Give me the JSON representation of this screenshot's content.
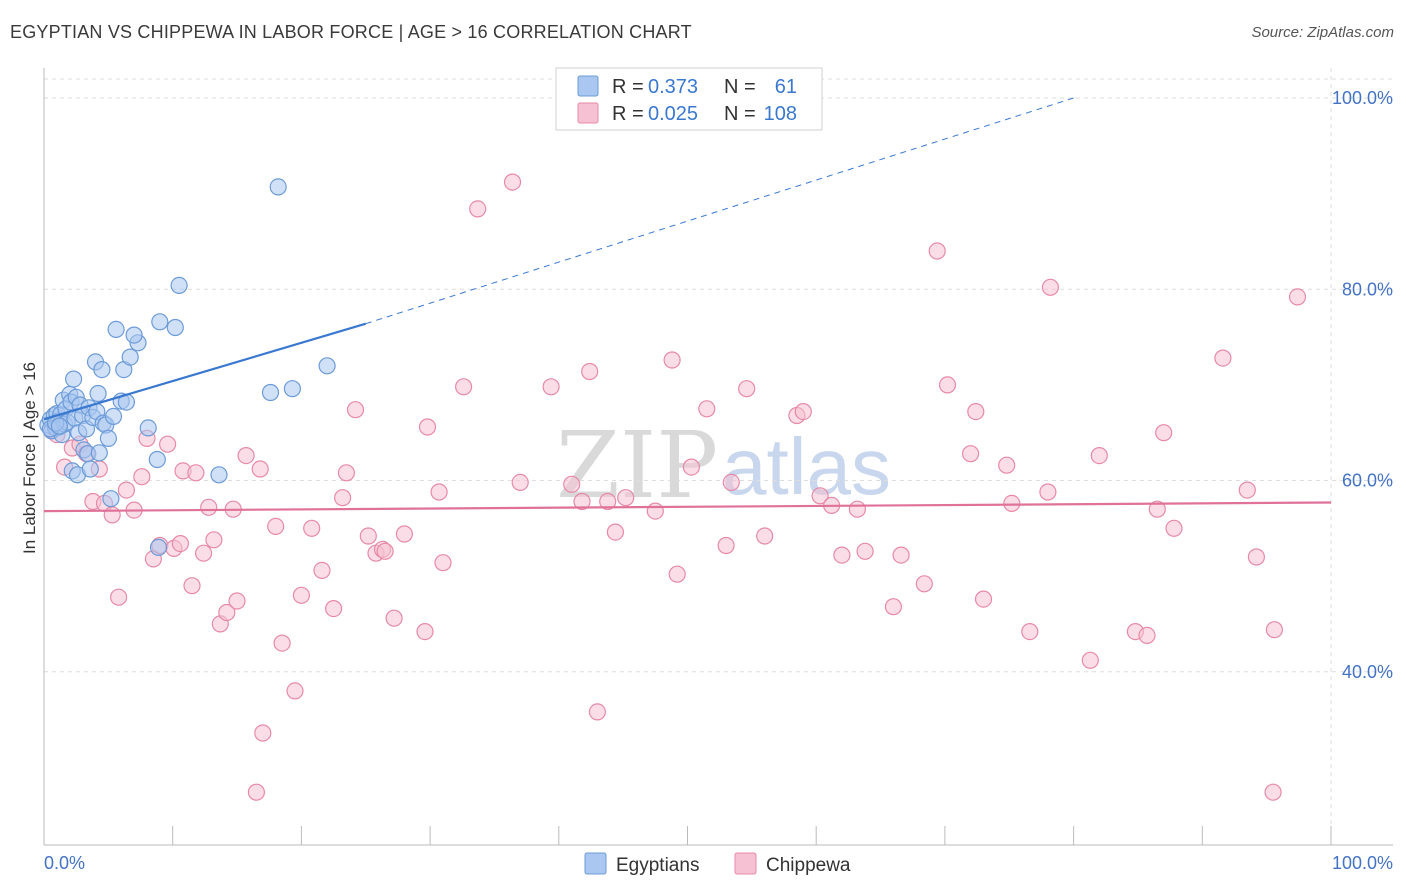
{
  "chart_data": {
    "type": "scatter",
    "title": "EGYPTIAN VS CHIPPEWA IN LABOR FORCE | AGE > 16 CORRELATION CHART",
    "source": "Source: ZipAtlas.com",
    "xlabel": "",
    "ylabel": "In Labor Force | Age > 16",
    "xlim": [
      0,
      100
    ],
    "ylim": [
      20,
      100
    ],
    "x_tick_labels": {
      "min": "0.0%",
      "max": "100.0%"
    },
    "y_ticks": [
      {
        "value": 100,
        "label": "100.0%"
      },
      {
        "value": 80,
        "label": "80.0%"
      },
      {
        "value": 60,
        "label": "60.0%"
      },
      {
        "value": 40,
        "label": "40.0%"
      }
    ],
    "grid": true,
    "watermark": {
      "zip": "ZIP",
      "atlas": "atlas"
    },
    "legend_position": "top-center",
    "colors": {
      "egyptians_fill": "#a9c7f0",
      "egyptians_stroke": "#6c9bd8",
      "egyptians_line": "#3a78d0",
      "chippewa_fill": "#f6c1d2",
      "chippewa_stroke": "#e78aa8",
      "chippewa_line": "#e0729a",
      "grid": "#dddddd",
      "axis_text": "#4472c4"
    },
    "series": [
      {
        "name": "Egyptians",
        "legend_label": "Egyptians",
        "r_label": "R =",
        "r_value": "0.373",
        "n_label": "N =",
        "n_value": "61",
        "trend": {
          "x0": 0,
          "y0": 66.4,
          "x1": 25,
          "y1": 76.4,
          "dash_x1": 80,
          "dash_y1": 100
        },
        "points": [
          [
            0.3,
            65.8
          ],
          [
            0.5,
            66.4
          ],
          [
            0.6,
            65.2
          ],
          [
            0.8,
            66.8
          ],
          [
            0.9,
            65.5
          ],
          [
            1.0,
            67.0
          ],
          [
            1.1,
            66.2
          ],
          [
            1.2,
            65.6
          ],
          [
            1.3,
            66.9
          ],
          [
            1.4,
            64.8
          ],
          [
            1.5,
            68.4
          ],
          [
            1.6,
            65.9
          ],
          [
            1.7,
            67.5
          ],
          [
            1.8,
            66.1
          ],
          [
            2.0,
            69.0
          ],
          [
            2.1,
            68.2
          ],
          [
            2.2,
            61.0
          ],
          [
            2.3,
            70.6
          ],
          [
            2.4,
            66.5
          ],
          [
            2.5,
            68.7
          ],
          [
            2.6,
            60.6
          ],
          [
            2.7,
            65.0
          ],
          [
            2.8,
            67.9
          ],
          [
            3.0,
            66.8
          ],
          [
            3.1,
            63.2
          ],
          [
            3.3,
            65.4
          ],
          [
            3.4,
            62.8
          ],
          [
            3.5,
            67.6
          ],
          [
            3.6,
            61.2
          ],
          [
            3.8,
            66.6
          ],
          [
            4.0,
            72.4
          ],
          [
            4.1,
            67.2
          ],
          [
            4.2,
            69.1
          ],
          [
            4.3,
            62.9
          ],
          [
            4.5,
            71.6
          ],
          [
            4.6,
            66.0
          ],
          [
            4.8,
            65.8
          ],
          [
            5.0,
            64.4
          ],
          [
            5.2,
            58.1
          ],
          [
            5.4,
            66.7
          ],
          [
            5.6,
            75.8
          ],
          [
            6.0,
            68.3
          ],
          [
            6.2,
            71.6
          ],
          [
            6.4,
            68.2
          ],
          [
            6.7,
            72.9
          ],
          [
            7.3,
            74.4
          ],
          [
            7.0,
            75.2
          ],
          [
            8.1,
            65.5
          ],
          [
            8.8,
            62.2
          ],
          [
            8.9,
            53.0
          ],
          [
            9.0,
            76.6
          ],
          [
            10.2,
            76.0
          ],
          [
            10.5,
            80.4
          ],
          [
            13.6,
            60.6
          ],
          [
            17.6,
            69.2
          ],
          [
            18.2,
            90.7
          ],
          [
            19.3,
            69.6
          ],
          [
            22.0,
            72.0
          ],
          [
            0.5,
            65.4
          ],
          [
            0.9,
            66.0
          ],
          [
            1.2,
            65.7
          ]
        ]
      },
      {
        "name": "Chippewa",
        "legend_label": "Chippewa",
        "r_label": "R =",
        "r_value": "0.025",
        "n_label": "N =",
        "n_value": "108",
        "trend": {
          "x0": 0,
          "y0": 56.8,
          "x1": 100,
          "y1": 57.7
        },
        "points": [
          [
            0.6,
            65.2
          ],
          [
            1.0,
            64.8
          ],
          [
            1.6,
            61.4
          ],
          [
            2.2,
            63.4
          ],
          [
            2.8,
            63.8
          ],
          [
            3.3,
            62.8
          ],
          [
            3.8,
            57.8
          ],
          [
            4.3,
            61.2
          ],
          [
            4.7,
            57.6
          ],
          [
            5.3,
            56.4
          ],
          [
            5.8,
            47.8
          ],
          [
            6.4,
            59.0
          ],
          [
            7.0,
            56.9
          ],
          [
            7.6,
            60.4
          ],
          [
            8.0,
            64.4
          ],
          [
            8.5,
            51.8
          ],
          [
            9.0,
            53.2
          ],
          [
            9.6,
            63.8
          ],
          [
            10.1,
            52.9
          ],
          [
            10.6,
            53.4
          ],
          [
            10.8,
            61.0
          ],
          [
            11.5,
            49.0
          ],
          [
            11.8,
            60.8
          ],
          [
            12.4,
            52.4
          ],
          [
            12.8,
            57.2
          ],
          [
            13.2,
            53.8
          ],
          [
            13.7,
            45.0
          ],
          [
            14.2,
            46.2
          ],
          [
            14.7,
            57.0
          ],
          [
            15.0,
            47.4
          ],
          [
            15.7,
            62.6
          ],
          [
            16.5,
            27.4
          ],
          [
            16.8,
            61.2
          ],
          [
            17.0,
            33.6
          ],
          [
            18.0,
            55.2
          ],
          [
            18.5,
            43.0
          ],
          [
            19.5,
            38.0
          ],
          [
            20.0,
            48.0
          ],
          [
            20.8,
            55.0
          ],
          [
            21.6,
            50.6
          ],
          [
            22.5,
            46.6
          ],
          [
            23.2,
            58.2
          ],
          [
            23.5,
            60.8
          ],
          [
            24.2,
            67.4
          ],
          [
            25.2,
            54.2
          ],
          [
            25.8,
            52.4
          ],
          [
            26.3,
            52.8
          ],
          [
            26.5,
            52.6
          ],
          [
            27.2,
            45.6
          ],
          [
            28.0,
            54.4
          ],
          [
            29.6,
            44.2
          ],
          [
            29.8,
            65.6
          ],
          [
            30.7,
            58.8
          ],
          [
            31.0,
            51.4
          ],
          [
            32.6,
            69.8
          ],
          [
            33.7,
            88.4
          ],
          [
            36.4,
            91.2
          ],
          [
            37.0,
            59.8
          ],
          [
            39.4,
            69.8
          ],
          [
            41.0,
            59.6
          ],
          [
            41.8,
            57.8
          ],
          [
            42.4,
            71.4
          ],
          [
            43.0,
            35.8
          ],
          [
            43.8,
            57.8
          ],
          [
            44.4,
            54.6
          ],
          [
            45.2,
            58.2
          ],
          [
            47.5,
            56.8
          ],
          [
            48.8,
            72.6
          ],
          [
            49.2,
            50.2
          ],
          [
            50.3,
            61.4
          ],
          [
            51.5,
            67.5
          ],
          [
            53.0,
            53.2
          ],
          [
            53.4,
            59.8
          ],
          [
            54.6,
            69.6
          ],
          [
            56.0,
            54.2
          ],
          [
            58.5,
            66.8
          ],
          [
            59.0,
            67.2
          ],
          [
            60.3,
            58.4
          ],
          [
            61.2,
            57.4
          ],
          [
            62.0,
            52.2
          ],
          [
            63.2,
            57.0
          ],
          [
            63.8,
            52.6
          ],
          [
            66.0,
            46.8
          ],
          [
            66.6,
            52.2
          ],
          [
            68.4,
            49.2
          ],
          [
            69.4,
            84.0
          ],
          [
            70.2,
            70.0
          ],
          [
            72.0,
            62.8
          ],
          [
            72.4,
            67.2
          ],
          [
            73.0,
            47.6
          ],
          [
            74.8,
            61.6
          ],
          [
            75.2,
            57.6
          ],
          [
            76.6,
            44.2
          ],
          [
            78.0,
            58.8
          ],
          [
            78.2,
            80.2
          ],
          [
            81.3,
            41.2
          ],
          [
            82.0,
            62.6
          ],
          [
            84.8,
            44.2
          ],
          [
            85.7,
            43.8
          ],
          [
            86.5,
            57.0
          ],
          [
            87.0,
            65.0
          ],
          [
            87.8,
            55.0
          ],
          [
            91.6,
            72.8
          ],
          [
            93.5,
            59.0
          ],
          [
            94.2,
            52.0
          ],
          [
            95.5,
            27.4
          ],
          [
            95.6,
            44.4
          ],
          [
            97.4,
            79.2
          ]
        ]
      }
    ]
  }
}
